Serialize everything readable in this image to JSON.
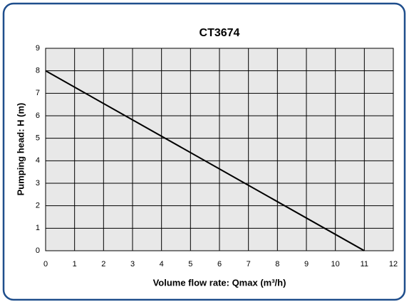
{
  "chart_data": {
    "type": "line",
    "title": "CT3674",
    "x_label": "Volume flow rate: Qmax (m³/h)",
    "y_label": "Pumping head: H (m)",
    "x": [
      0,
      11
    ],
    "series": [
      {
        "name": "CT3674",
        "color": "#000000",
        "values": [
          8,
          0
        ]
      }
    ],
    "xlim": [
      0,
      12
    ],
    "xticks": [
      0,
      1,
      2,
      3,
      4,
      5,
      6,
      7,
      8,
      9,
      10,
      11,
      12
    ],
    "ylim": [
      0,
      9
    ],
    "yticks": [
      0,
      1,
      2,
      3,
      4,
      5,
      6,
      7,
      8,
      9
    ],
    "grid": true
  }
}
